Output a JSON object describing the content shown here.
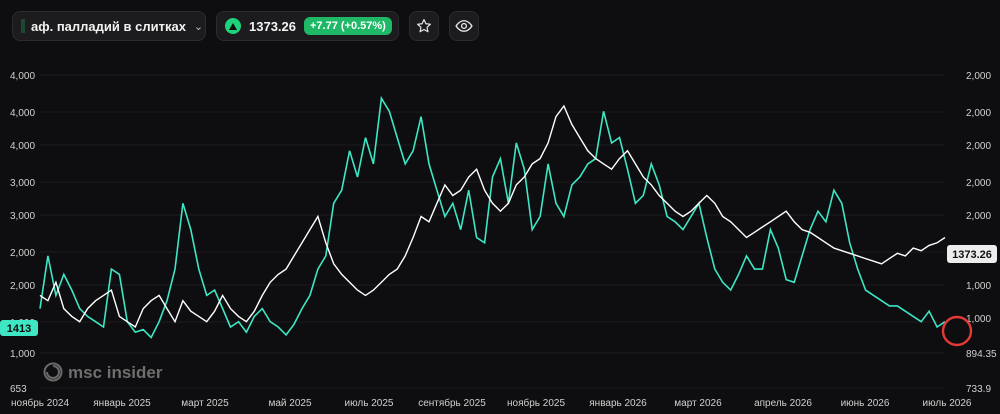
{
  "toolbar": {
    "symbol_name": "аф. палладий в слитках",
    "price": "1373.26",
    "change": "+7.77 (+0.57%)",
    "up_color": "#1fd17a",
    "star_icon": "star-icon",
    "eye_icon": "eye-icon"
  },
  "watermark": {
    "text": "msc insider"
  },
  "chart_data": {
    "type": "line",
    "colors": {
      "series_a": "#3ee6c4",
      "series_b": "#ffffff",
      "current_marker": "#e53935"
    },
    "y_left_ticks": [
      "4,000",
      "4,000",
      "4,000",
      "3,000",
      "3,000",
      "2,000",
      "2,000",
      "1,000",
      "1,000",
      "653"
    ],
    "y_right_ticks": [
      "2,000",
      "2,000",
      "2,000",
      "2,000",
      "2,000",
      "2,000",
      "1,000",
      "1,000",
      "894.35",
      "733.9"
    ],
    "x_ticks": [
      "ноябрь 2024",
      "январь 2025",
      "март 2025",
      "май 2025",
      "июль 2025",
      "сентябрь 2025",
      "ноябрь 2025",
      "январь 2026",
      "март 2026",
      "апрель 2026",
      "июнь 2026",
      "июль 2026"
    ],
    "left_last_label": "1413",
    "right_last_label": "1373.26",
    "right_low_label": "894.35",
    "series": [
      {
        "values": [
          0.15,
          0.35,
          0.2,
          0.28,
          0.22,
          0.15,
          0.12,
          0.1,
          0.08,
          0.3,
          0.28,
          0.1,
          0.06,
          0.07,
          0.04,
          0.1,
          0.18,
          0.3,
          0.55,
          0.45,
          0.3,
          0.2,
          0.22,
          0.15,
          0.08,
          0.1,
          0.06,
          0.12,
          0.15,
          0.1,
          0.08,
          0.05,
          0.09,
          0.15,
          0.2,
          0.3,
          0.35,
          0.55,
          0.6,
          0.75,
          0.65,
          0.8,
          0.7,
          0.95,
          0.9,
          0.8,
          0.7,
          0.75,
          0.88,
          0.7,
          0.6,
          0.5,
          0.55,
          0.45,
          0.6,
          0.42,
          0.4,
          0.65,
          0.72,
          0.55,
          0.78,
          0.68,
          0.45,
          0.5,
          0.7,
          0.55,
          0.5,
          0.62,
          0.65,
          0.7,
          0.72,
          0.9,
          0.78,
          0.8,
          0.68,
          0.55,
          0.58,
          0.7,
          0.62,
          0.5,
          0.48,
          0.45,
          0.5,
          0.55,
          0.42,
          0.3,
          0.25,
          0.22,
          0.28,
          0.35,
          0.3,
          0.3,
          0.45,
          0.38,
          0.26,
          0.25,
          0.35,
          0.45,
          0.52,
          0.48,
          0.6,
          0.55,
          0.4,
          0.3,
          0.22,
          0.2,
          0.18,
          0.16,
          0.16,
          0.14,
          0.12,
          0.1,
          0.14,
          0.08,
          0.1
        ]
      },
      {
        "values": [
          0.2,
          0.18,
          0.25,
          0.15,
          0.12,
          0.1,
          0.15,
          0.18,
          0.2,
          0.22,
          0.12,
          0.1,
          0.08,
          0.15,
          0.18,
          0.2,
          0.15,
          0.1,
          0.18,
          0.14,
          0.12,
          0.1,
          0.14,
          0.2,
          0.15,
          0.12,
          0.1,
          0.14,
          0.2,
          0.25,
          0.28,
          0.3,
          0.35,
          0.4,
          0.45,
          0.5,
          0.4,
          0.32,
          0.28,
          0.25,
          0.22,
          0.2,
          0.22,
          0.25,
          0.28,
          0.3,
          0.35,
          0.42,
          0.5,
          0.48,
          0.55,
          0.62,
          0.58,
          0.6,
          0.65,
          0.68,
          0.6,
          0.55,
          0.52,
          0.55,
          0.62,
          0.65,
          0.7,
          0.72,
          0.78,
          0.88,
          0.92,
          0.85,
          0.8,
          0.75,
          0.72,
          0.7,
          0.68,
          0.72,
          0.75,
          0.7,
          0.65,
          0.62,
          0.58,
          0.55,
          0.52,
          0.5,
          0.52,
          0.55,
          0.58,
          0.55,
          0.5,
          0.48,
          0.45,
          0.42,
          0.44,
          0.46,
          0.48,
          0.5,
          0.52,
          0.48,
          0.45,
          0.44,
          0.42,
          0.4,
          0.38,
          0.37,
          0.36,
          0.35,
          0.34,
          0.33,
          0.32,
          0.34,
          0.36,
          0.35,
          0.38,
          0.37,
          0.39,
          0.4,
          0.42
        ]
      }
    ]
  }
}
